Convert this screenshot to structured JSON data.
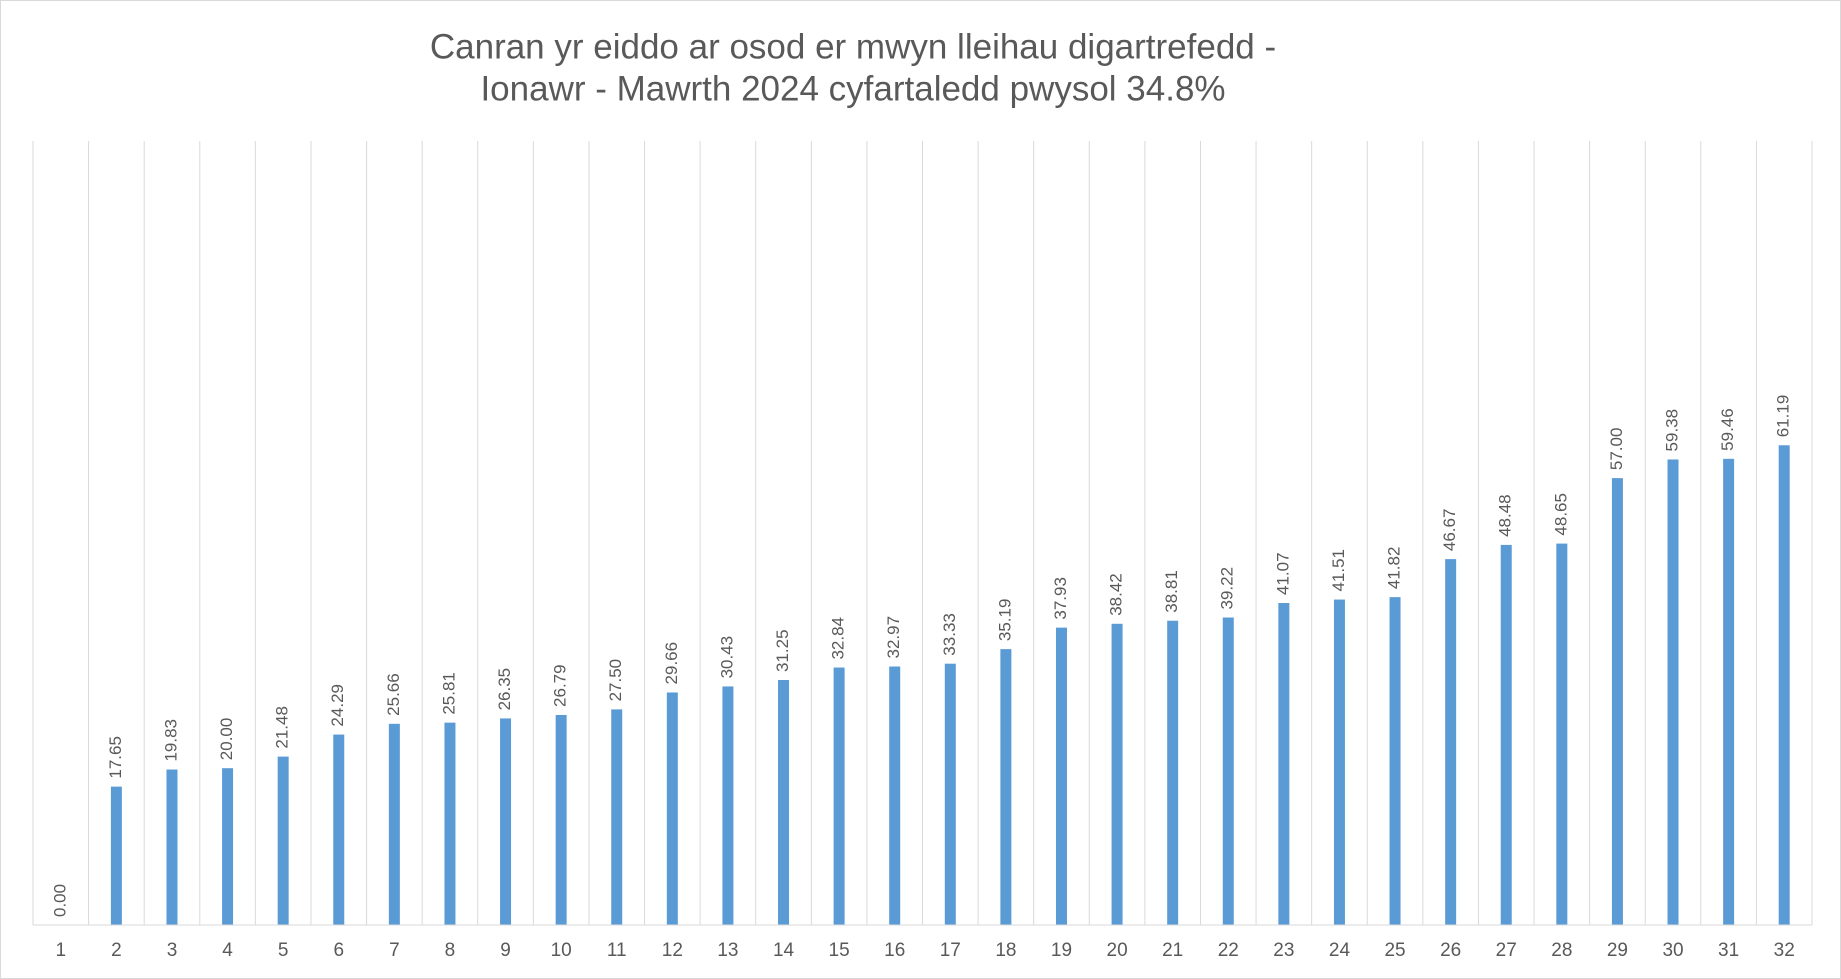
{
  "chart_data": {
    "type": "bar",
    "title": [
      "Canran yr eiddo ar osod er mwyn lleihau digartrefedd -",
      "Ionawr - Mawrth 2024 cyfartaledd pwysol 34.8%"
    ],
    "categories": [
      "1",
      "2",
      "3",
      "4",
      "5",
      "6",
      "7",
      "8",
      "9",
      "10",
      "11",
      "12",
      "13",
      "14",
      "15",
      "16",
      "17",
      "18",
      "19",
      "20",
      "21",
      "22",
      "23",
      "24",
      "25",
      "26",
      "27",
      "28",
      "29",
      "30",
      "31",
      "32"
    ],
    "values": [
      0,
      17.65,
      19.83,
      20,
      21.48,
      24.29,
      25.66,
      25.81,
      26.35,
      26.79,
      27.5,
      29.66,
      30.43,
      31.25,
      32.84,
      32.97,
      33.33,
      35.19,
      37.93,
      38.42,
      38.81,
      39.22,
      41.07,
      41.51,
      41.82,
      46.67,
      48.48,
      48.65,
      57,
      59.38,
      59.46,
      61.19
    ],
    "value_labels": [
      "0.00",
      "17.65",
      "19.83",
      "20.00",
      "21.48",
      "24.29",
      "25.66",
      "25.81",
      "26.35",
      "26.79",
      "27.50",
      "29.66",
      "30.43",
      "31.25",
      "32.84",
      "32.97",
      "33.33",
      "35.19",
      "37.93",
      "38.42",
      "38.81",
      "39.22",
      "41.07",
      "41.51",
      "41.82",
      "46.67",
      "48.48",
      "48.65",
      "57.00",
      "59.38",
      "59.46",
      "61.19"
    ],
    "color": "#5b9bd5",
    "ylim": [
      0,
      100
    ]
  }
}
